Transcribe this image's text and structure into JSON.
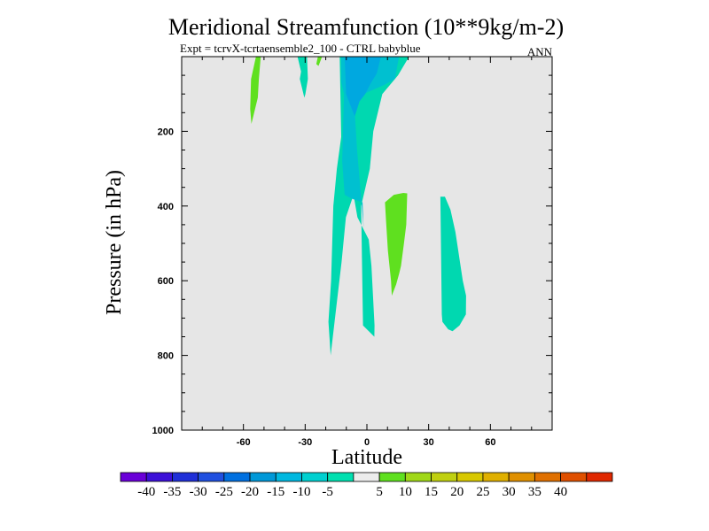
{
  "chart_data": {
    "type": "contour",
    "title": "Meridional Streamfunction (10**9kg/m-2)",
    "subtitle": "Expt = tcrvX-tcrtaensemble2_100 - CTRL babyblue",
    "period_label": "ANN",
    "xlabel": "Latitude",
    "ylabel": "Pressure (in hPa)",
    "xlim": [
      -90,
      90
    ],
    "ylim": [
      1000,
      0
    ],
    "x_ticks": [
      -60,
      -30,
      0,
      30,
      60
    ],
    "y_ticks": [
      200,
      400,
      600,
      800,
      1000
    ],
    "background_color": "#e6e6e6",
    "regions": [
      {
        "level": "-5 to -10",
        "color": "#00d8b0",
        "points": [
          [
            -13.2,
            0
          ],
          [
            -13.1,
            37
          ],
          [
            -12.5,
            215
          ],
          [
            -14.6,
            300
          ],
          [
            -16.3,
            400
          ],
          [
            -17.4,
            600
          ],
          [
            -18.7,
            710
          ],
          [
            -17.6,
            800
          ],
          [
            -15.5,
            700
          ],
          [
            -12.3,
            550
          ],
          [
            -10.2,
            430
          ],
          [
            -6.5,
            370
          ],
          [
            -4.6,
            430
          ],
          [
            0.9,
            490
          ],
          [
            2.2,
            560
          ],
          [
            3.7,
            720
          ],
          [
            3.6,
            750
          ],
          [
            -1.9,
            720
          ],
          [
            -2.4,
            540
          ],
          [
            -2.8,
            400
          ],
          [
            1.4,
            300
          ],
          [
            3.1,
            200
          ],
          [
            7.5,
            100
          ],
          [
            15.1,
            50
          ],
          [
            20.5,
            0
          ]
        ]
      },
      {
        "level": "-5 to -10",
        "color": "#00d8b0",
        "points": [
          [
            -29.1,
            0
          ],
          [
            -33.7,
            0
          ],
          [
            -32.0,
            40
          ],
          [
            -32.6,
            60
          ],
          [
            -30.4,
            110
          ],
          [
            -29.9,
            100
          ],
          [
            -28.7,
            60
          ]
        ]
      },
      {
        "level": "-5 to -10",
        "color": "#00d8b0",
        "points": [
          [
            35.7,
            375
          ],
          [
            37.9,
            375
          ],
          [
            40.6,
            410
          ],
          [
            43.0,
            470
          ],
          [
            46.6,
            600
          ],
          [
            48.2,
            640
          ],
          [
            48.1,
            690
          ],
          [
            45.0,
            720
          ],
          [
            41.6,
            735
          ],
          [
            39.5,
            730
          ],
          [
            36.7,
            710
          ],
          [
            36.4,
            690
          ]
        ]
      },
      {
        "level": "-10 to -15",
        "color": "#00c0d0",
        "points": [
          [
            -12.5,
            0
          ],
          [
            -12.4,
            70
          ],
          [
            -11.1,
            100
          ],
          [
            -12.0,
            280
          ],
          [
            -10.8,
            370
          ],
          [
            -7.5,
            380
          ],
          [
            -2.1,
            390
          ],
          [
            -1.6,
            460
          ],
          [
            -4.8,
            250
          ],
          [
            -6.2,
            120
          ],
          [
            -1.7,
            100
          ],
          [
            8.6,
            75
          ],
          [
            13.6,
            60
          ],
          [
            15.6,
            0
          ]
        ]
      },
      {
        "level": "-15 to -20",
        "color": "#00a8e0",
        "points": [
          [
            -10.8,
            0
          ],
          [
            -10.1,
            100
          ],
          [
            -5.9,
            160
          ],
          [
            -3.6,
            120
          ],
          [
            -0.8,
            100
          ],
          [
            2.0,
            70
          ],
          [
            4.8,
            45
          ],
          [
            6.8,
            0
          ]
        ]
      },
      {
        "level": "5 to 10",
        "color": "#5fe01f",
        "points": [
          [
            -53.9,
            0
          ],
          [
            -51.6,
            0
          ],
          [
            -52.5,
            60
          ],
          [
            -53.0,
            110
          ],
          [
            -56.1,
            180
          ],
          [
            -56.7,
            140
          ],
          [
            -56.3,
            60
          ]
        ]
      },
      {
        "level": "5 to 10",
        "color": "#5fe01f",
        "points": [
          [
            8.8,
            390
          ],
          [
            13.1,
            370
          ],
          [
            17.7,
            365
          ],
          [
            19.6,
            366
          ],
          [
            19.1,
            450
          ],
          [
            18.0,
            500
          ],
          [
            16.6,
            560
          ],
          [
            15.7,
            580
          ],
          [
            14.2,
            610
          ],
          [
            12.1,
            640
          ],
          [
            11.7,
            600
          ],
          [
            10.2,
            520
          ],
          [
            9.3,
            440
          ]
        ]
      },
      {
        "level": "5 to 10",
        "color": "#5fe01f",
        "points": [
          [
            -21.8,
            0
          ],
          [
            -23.8,
            0
          ],
          [
            -24.6,
            20
          ],
          [
            -23.5,
            25
          ]
        ]
      }
    ],
    "colorbar": {
      "colors": [
        "#6a00d8",
        "#3c10d8",
        "#2030d8",
        "#2050e0",
        "#0070e0",
        "#0098d8",
        "#00b8e0",
        "#00d0d0",
        "#00e0b0",
        "#ececec",
        "#5fe01f",
        "#a0d818",
        "#c0d010",
        "#d8c800",
        "#e0b000",
        "#e09000",
        "#e07000",
        "#e05000",
        "#e02800"
      ],
      "labels": [
        "-40",
        "-35",
        "-30",
        "-25",
        "-20",
        "-15",
        "-10",
        "-5",
        "5",
        "10",
        "15",
        "20",
        "25",
        "30",
        "35",
        "40"
      ]
    }
  }
}
